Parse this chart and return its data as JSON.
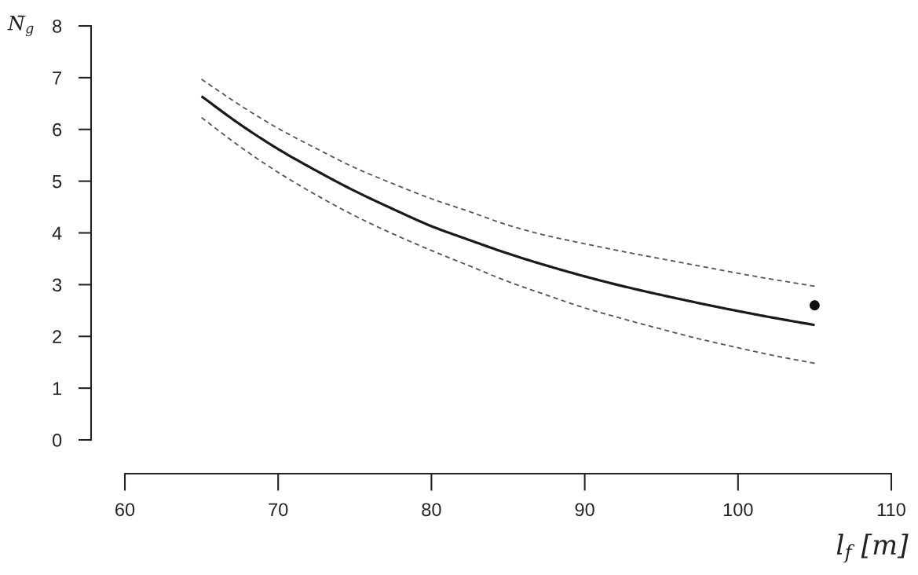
{
  "chart_data": {
    "type": "line",
    "xlabel": "l$_{f}$ [m]",
    "ylabel": "N̄$_{g}$",
    "x": [
      65,
      67.5,
      70,
      72.5,
      75,
      77.5,
      80,
      82.5,
      85,
      87.5,
      90,
      92.5,
      95,
      97.5,
      100,
      102.5,
      105
    ],
    "series": [
      {
        "color": "#1a1a1a",
        "line_style": "solid",
        "values": [
          6.64,
          6.1,
          5.62,
          5.2,
          4.81,
          4.46,
          4.13,
          3.86,
          3.6,
          3.37,
          3.16,
          2.97,
          2.8,
          2.64,
          2.49,
          2.35,
          2.22
        ]
      },
      {
        "color": "#555555",
        "line_style": "dashed",
        "values": [
          6.97,
          6.47,
          6.02,
          5.63,
          5.26,
          4.95,
          4.66,
          4.41,
          4.15,
          3.95,
          3.79,
          3.64,
          3.5,
          3.36,
          3.22,
          3.09,
          2.97
        ]
      },
      {
        "color": "#555555",
        "line_style": "dashed",
        "values": [
          6.23,
          5.67,
          5.17,
          4.73,
          4.33,
          3.98,
          3.66,
          3.36,
          3.06,
          2.8,
          2.55,
          2.34,
          2.14,
          1.95,
          1.78,
          1.62,
          1.48
        ]
      },
      {
        "type": "scatter",
        "x": [
          105
        ],
        "values": [
          2.6
        ],
        "color": "#111111",
        "marker": "circle"
      }
    ],
    "xlim": [
      60,
      110
    ],
    "ylim": [
      0,
      8
    ],
    "xticks": [
      60,
      70,
      80,
      90,
      100,
      110
    ],
    "yticks": [
      0,
      1,
      2,
      3,
      4,
      5,
      6,
      7,
      8
    ],
    "grid": false,
    "marker": "none"
  }
}
